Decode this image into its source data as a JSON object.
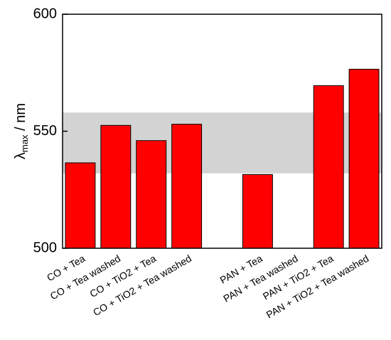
{
  "chart_data": {
    "type": "bar",
    "y_label": {
      "symbol": "λ",
      "subscript": "max",
      "unit": " / nm"
    },
    "categories": [
      "CO + Tea",
      "CO + Tea washed",
      "CO + TiO2 + Tea",
      "CO + TiO2 + Tea washed",
      null,
      "PAN + Tea",
      "PAN + Tea washed",
      "PAN + TiO2 + Tea",
      "PAN + TiO2 + Tea washed"
    ],
    "values": [
      536.5,
      552.5,
      546,
      553,
      null,
      531.5,
      null,
      569.5,
      576.5
    ],
    "color": "#ff0000",
    "band": [
      532,
      558
    ],
    "band_color": "#d3d3d3",
    "ylim": [
      500,
      600
    ],
    "yticks": [
      500,
      550,
      600
    ]
  }
}
